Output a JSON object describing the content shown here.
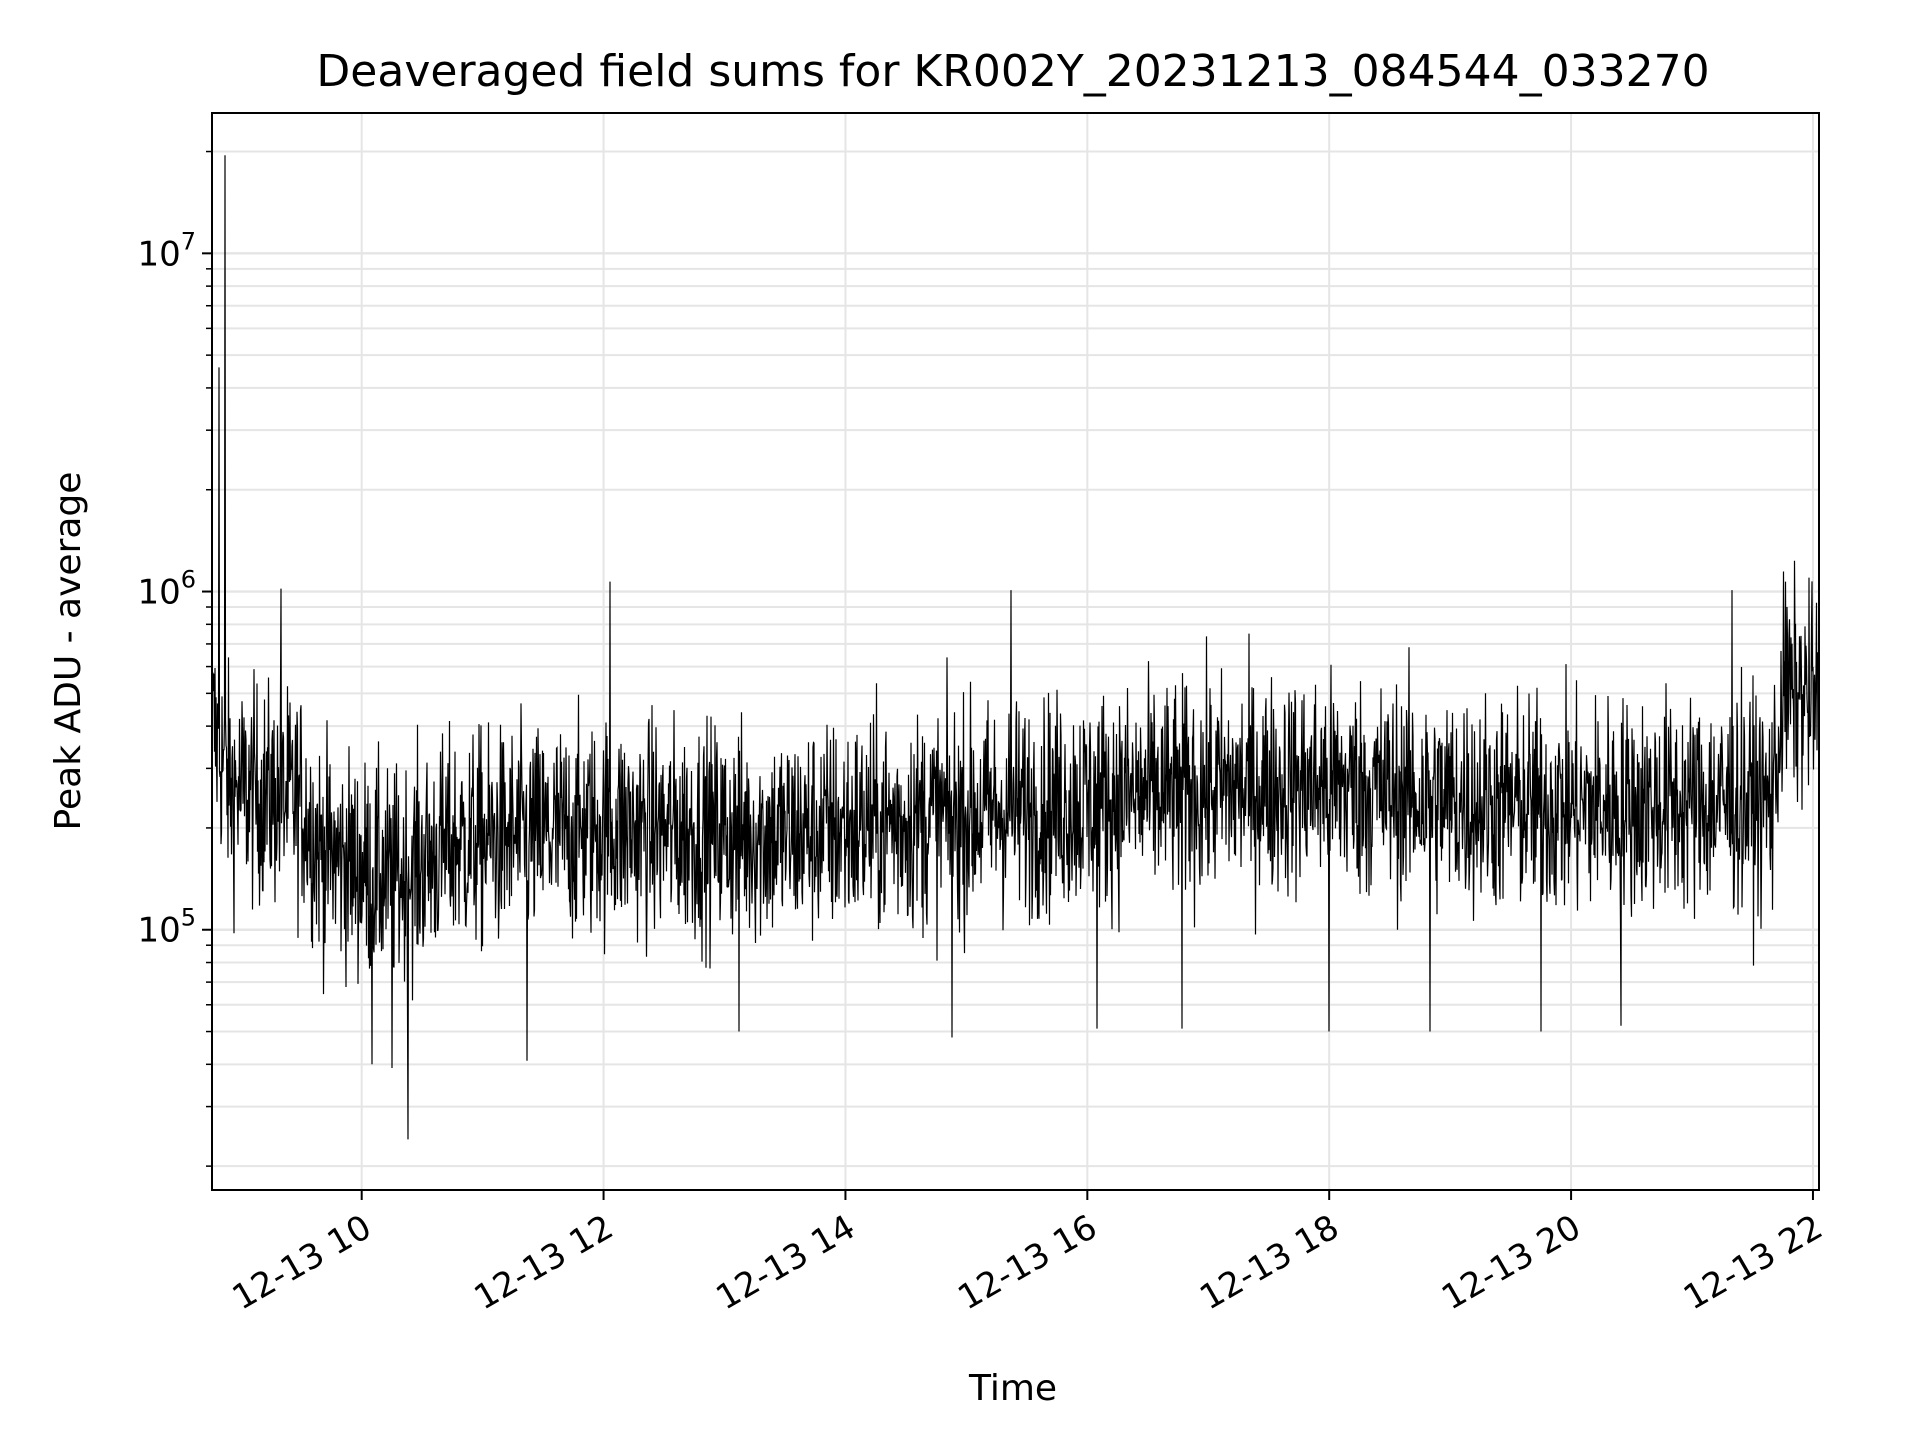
{
  "chart_data": {
    "type": "line",
    "title": "Deaveraged field sums for KR002Y_20231213_084544_033270",
    "xlabel": "Time",
    "ylabel": "Peak ADU - average",
    "x_axis": {
      "kind": "time",
      "range": [
        "2023-12-13T08:45:44",
        "2023-12-13T22:03:00"
      ],
      "ticks": [
        {
          "time": "2023-12-13T10:00",
          "label": "12-13 10"
        },
        {
          "time": "2023-12-13T12:00",
          "label": "12-13 12"
        },
        {
          "time": "2023-12-13T14:00",
          "label": "12-13 14"
        },
        {
          "time": "2023-12-13T16:00",
          "label": "12-13 16"
        },
        {
          "time": "2023-12-13T18:00",
          "label": "12-13 18"
        },
        {
          "time": "2023-12-13T20:00",
          "label": "12-13 20"
        },
        {
          "time": "2023-12-13T22:00",
          "label": "12-13 22"
        }
      ],
      "tick_label_rotation_deg": -30
    },
    "y_axis": {
      "scale": "log",
      "range": [
        17000,
        26000000
      ],
      "ticks": [
        {
          "value": 100000,
          "base": "10",
          "exp": "5"
        },
        {
          "value": 1000000,
          "base": "10",
          "exp": "6"
        },
        {
          "value": 10000000,
          "base": "10",
          "exp": "7"
        }
      ]
    },
    "grid": true,
    "colors": {
      "line": "#000000",
      "grid": "#e5e5e5",
      "axes": "#000000"
    },
    "series": [
      {
        "profile": [
          {
            "time": "2023-12-13T08:46",
            "median": 400000
          },
          {
            "time": "2023-12-13T08:55",
            "median": 260000
          },
          {
            "time": "2023-12-13T09:30",
            "median": 240000
          },
          {
            "time": "2023-12-13T09:40",
            "median": 170000
          },
          {
            "time": "2023-12-13T10:15",
            "median": 140000
          },
          {
            "time": "2023-12-13T10:45",
            "median": 180000
          },
          {
            "time": "2023-12-13T11:30",
            "median": 190000
          },
          {
            "time": "2023-12-13T12:00",
            "median": 200000
          },
          {
            "time": "2023-12-13T13:30",
            "median": 190000
          },
          {
            "time": "2023-12-13T14:30",
            "median": 210000
          },
          {
            "time": "2023-12-13T16:00",
            "median": 240000
          },
          {
            "time": "2023-12-13T17:00",
            "median": 260000
          },
          {
            "time": "2023-12-13T18:00",
            "median": 270000
          },
          {
            "time": "2023-12-13T19:00",
            "median": 240000
          },
          {
            "time": "2023-12-13T20:00",
            "median": 230000
          },
          {
            "time": "2023-12-13T21:40",
            "median": 240000
          },
          {
            "time": "2023-12-13T21:45",
            "median": 500000
          },
          {
            "time": "2023-12-13T22:03",
            "median": 480000
          }
        ],
        "spread_decades": 0.16,
        "peaks": [
          {
            "time": "2023-12-13T08:52",
            "value": 19500000
          },
          {
            "time": "2023-12-13T08:49",
            "value": 4600000
          },
          {
            "time": "2023-12-13T09:20",
            "value": 1020000
          },
          {
            "time": "2023-12-13T12:03",
            "value": 1070000
          },
          {
            "time": "2023-12-13T15:22",
            "value": 1010000
          },
          {
            "time": "2023-12-13T21:20",
            "value": 1010000
          },
          {
            "time": "2023-12-13T21:47",
            "value": 900000
          }
        ],
        "dips": [
          {
            "time": "2023-12-13T10:23",
            "value": 24000
          },
          {
            "time": "2023-12-13T10:05",
            "value": 40000
          },
          {
            "time": "2023-12-13T10:15",
            "value": 39000
          },
          {
            "time": "2023-12-13T11:22",
            "value": 41000
          },
          {
            "time": "2023-12-13T13:07",
            "value": 50000
          },
          {
            "time": "2023-12-13T14:53",
            "value": 48000
          },
          {
            "time": "2023-12-13T16:05",
            "value": 51000
          },
          {
            "time": "2023-12-13T16:47",
            "value": 51000
          },
          {
            "time": "2023-12-13T18:00",
            "value": 50000
          },
          {
            "time": "2023-12-13T18:50",
            "value": 50000
          },
          {
            "time": "2023-12-13T19:45",
            "value": 50000
          },
          {
            "time": "2023-12-13T20:25",
            "value": 52000
          }
        ]
      }
    ]
  }
}
